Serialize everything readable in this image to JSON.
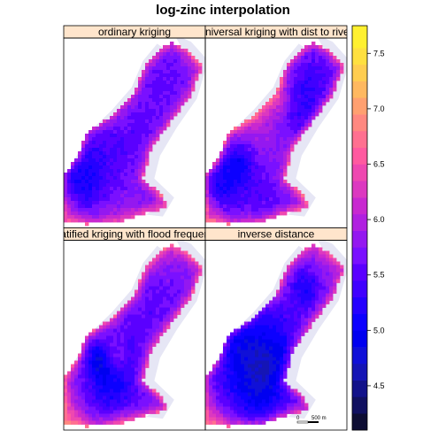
{
  "chart_data": {
    "type": "heatmap",
    "title": "log-zinc interpolation",
    "panels": [
      {
        "label": "ordinary kriging",
        "center": 5.55,
        "variation": 0.55,
        "edge_boost": 0.85,
        "seed": 11
      },
      {
        "label": "universal kriging with dist to river",
        "center": 5.45,
        "variation": 0.6,
        "edge_boost": 1.05,
        "seed": 23
      },
      {
        "label": "stratified kriging with flood frequency",
        "center": 5.5,
        "variation": 0.55,
        "edge_boost": 1.0,
        "seed": 37
      },
      {
        "label": "inverse distance",
        "center": 5.6,
        "variation": 0.75,
        "edge_boost": 0.85,
        "seed": 53
      }
    ],
    "colorkey": {
      "breaks": [
        4.1,
        4.25,
        4.4,
        4.55,
        4.7,
        4.85,
        5.0,
        5.15,
        5.3,
        5.45,
        5.6,
        5.75,
        5.9,
        6.05,
        6.2,
        6.35,
        6.5,
        6.65,
        6.8,
        6.95,
        7.1,
        7.25,
        7.4,
        7.55,
        7.75
      ],
      "colors": [
        "#0d0d33",
        "#101060",
        "#12128a",
        "#1515b5",
        "#1010d8",
        "#0000f0",
        "#0c00ff",
        "#2500ff",
        "#4000ff",
        "#5a00ff",
        "#7a10ff",
        "#9418f0",
        "#b020e0",
        "#c828d0",
        "#dc38c0",
        "#ee48b0",
        "#ff5aa0",
        "#ff7090",
        "#ff8880",
        "#ffa070",
        "#ffb860",
        "#ffcd50",
        "#ffe040",
        "#fff030"
      ],
      "ticks": [
        "4.5",
        "5.0",
        "5.5",
        "6.0",
        "6.5",
        "7.0",
        "7.5"
      ],
      "tick_values": [
        4.5,
        5.0,
        5.5,
        6.0,
        6.5,
        7.0,
        7.5
      ],
      "range": [
        4.1,
        7.75
      ]
    },
    "river_color": "#e6e6f5",
    "scalebar": {
      "left_label": "0",
      "right_label": "500 m"
    }
  }
}
